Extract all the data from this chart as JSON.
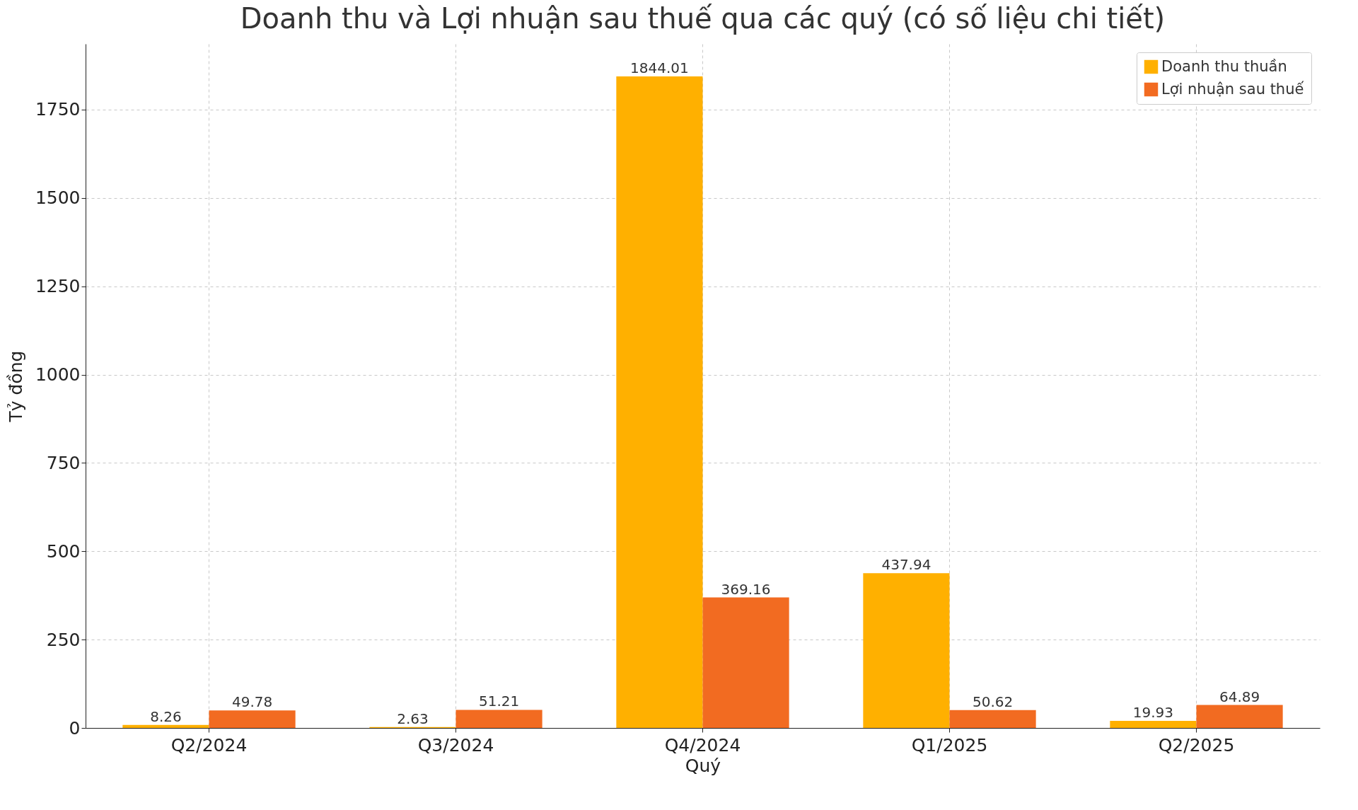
{
  "chart_data": {
    "type": "bar",
    "title": "Doanh thu và Lợi nhuận sau thuế qua các quý (có số liệu chi tiết)",
    "xlabel": "Quý",
    "ylabel": "Tỷ đồng",
    "categories": [
      "Q2/2024",
      "Q3/2024",
      "Q4/2024",
      "Q1/2025",
      "Q2/2025"
    ],
    "series": [
      {
        "name": "Doanh thu thuần",
        "color": "#ffb000",
        "values": [
          8.26,
          2.63,
          1844.01,
          437.94,
          19.93
        ]
      },
      {
        "name": "Lợi nhuận sau thuế",
        "color": "#f26b21",
        "values": [
          49.78,
          51.21,
          369.16,
          50.62,
          64.89
        ]
      }
    ],
    "ylim": [
      0,
      1936
    ],
    "yticks": [
      0,
      250,
      500,
      750,
      1000,
      1250,
      1500,
      1750
    ],
    "grid": true,
    "legend": "top right",
    "data_labels": true
  }
}
